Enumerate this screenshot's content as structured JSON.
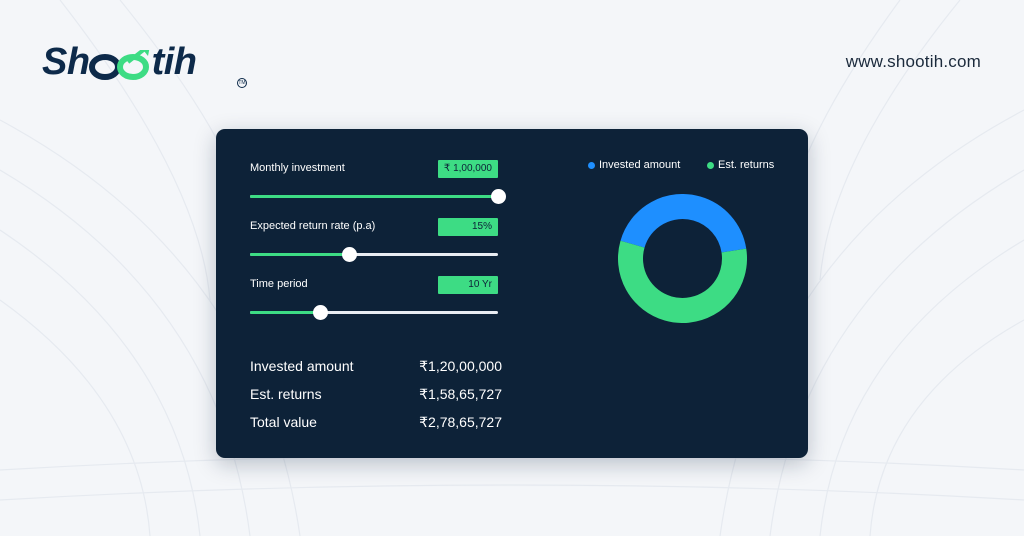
{
  "brand": {
    "name": "Shootih",
    "url": "www.shootih.com",
    "trademark": "TM"
  },
  "colors": {
    "navy": "#0d2238",
    "green": "#3ddc84",
    "blue": "#1e8fff",
    "white": "#ffffff"
  },
  "calculator": {
    "inputs": [
      {
        "label": "Monthly investment",
        "value": "₹ 1,00,000",
        "slider_fraction": 1.0
      },
      {
        "label": "Expected return rate (p.a)",
        "value": "15%",
        "slider_fraction": 0.4
      },
      {
        "label": "Time period",
        "value": "10 Yr",
        "slider_fraction": 0.285
      }
    ],
    "summary": [
      {
        "label": "Invested amount",
        "value": "₹1,20,00,000"
      },
      {
        "label": "Est. returns",
        "value": "₹1,58,65,727"
      },
      {
        "label": "Total value",
        "value": "₹2,78,65,727"
      }
    ]
  },
  "chart_data": {
    "type": "pie",
    "donut": true,
    "series": [
      {
        "name": "Invested amount",
        "value": 12000000,
        "color": "#1e8fff"
      },
      {
        "name": "Est. returns",
        "value": 15865727,
        "color": "#3ddc84"
      }
    ],
    "legend_position": "top"
  }
}
